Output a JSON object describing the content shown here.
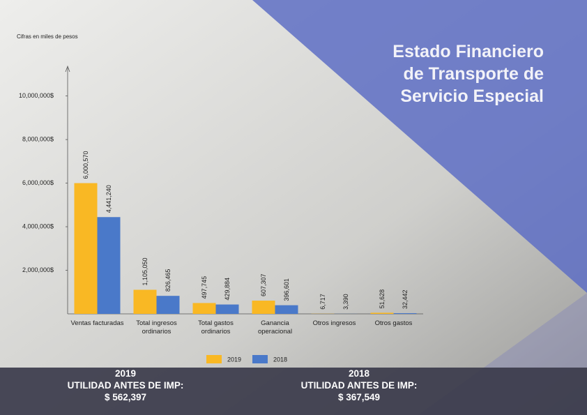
{
  "chart_data": {
    "type": "bar",
    "title": "Estado Financiero de Transporte de Servicio Especial",
    "subtitle": "Cifras en miles de pesos",
    "categories": [
      "Ventas facturadas",
      "Total ingresos ordinarios",
      "Total gastos ordinarios",
      "Ganancia operacional",
      "Otros ingresos",
      "Otros gastos"
    ],
    "series": [
      {
        "name": "2019",
        "color": "#f9b824",
        "values": [
          6000570,
          1105050,
          497745,
          607307,
          6717,
          51628
        ],
        "value_labels": [
          "6,000,570",
          "1,105,050",
          "497,745",
          "607,307",
          "6,717",
          "51,628"
        ]
      },
      {
        "name": "2018",
        "color": "#4a79c9",
        "values": [
          4441240,
          826465,
          429884,
          396601,
          3390,
          32442
        ],
        "value_labels": [
          "4,441,240",
          "826,465",
          "429,884",
          "396,601",
          "3,390",
          "32,442"
        ]
      }
    ],
    "ylim": [
      0,
      11300000
    ],
    "yticks": [
      {
        "value": 2000000,
        "label": "2,000,000$"
      },
      {
        "value": 4000000,
        "label": "4,000,000$"
      },
      {
        "value": 6000000,
        "label": "6,000,000$"
      },
      {
        "value": 8000000,
        "label": "8,000,000$"
      },
      {
        "value": 10000000,
        "label": "10,000,000$"
      }
    ],
    "summary": [
      {
        "year": "2019",
        "label": "UTILIDAD ANTES DE IMP:",
        "amount": "$ 562,397"
      },
      {
        "year": "2018",
        "label": "UTILIDAD ANTES DE IMP:",
        "amount": "$ 367,549"
      }
    ]
  }
}
